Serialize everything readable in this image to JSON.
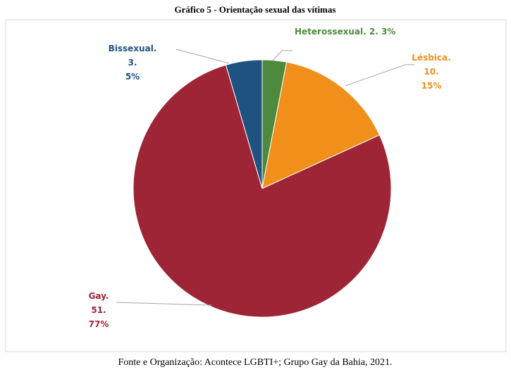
{
  "chart_data": {
    "type": "pie",
    "title": "Gráfico 5 - Orientação sexual das vítimas",
    "values": [
      2,
      10,
      51,
      3
    ],
    "value_labels": [
      [
        "Heterossexual. 2. 3%"
      ],
      [
        "Lésbica.",
        "10.",
        "15%"
      ],
      [
        "Gay.",
        "51.",
        "77%"
      ],
      [
        "Bissexual.",
        "3.",
        "5%"
      ]
    ],
    "colors": [
      "#4e8a3e",
      "#f0901a",
      "#9e2535",
      "#1f5280"
    ],
    "source": "Fonte e Organização: Acontece LGBTI+; Grupo Gay da Bahia, 2021."
  }
}
